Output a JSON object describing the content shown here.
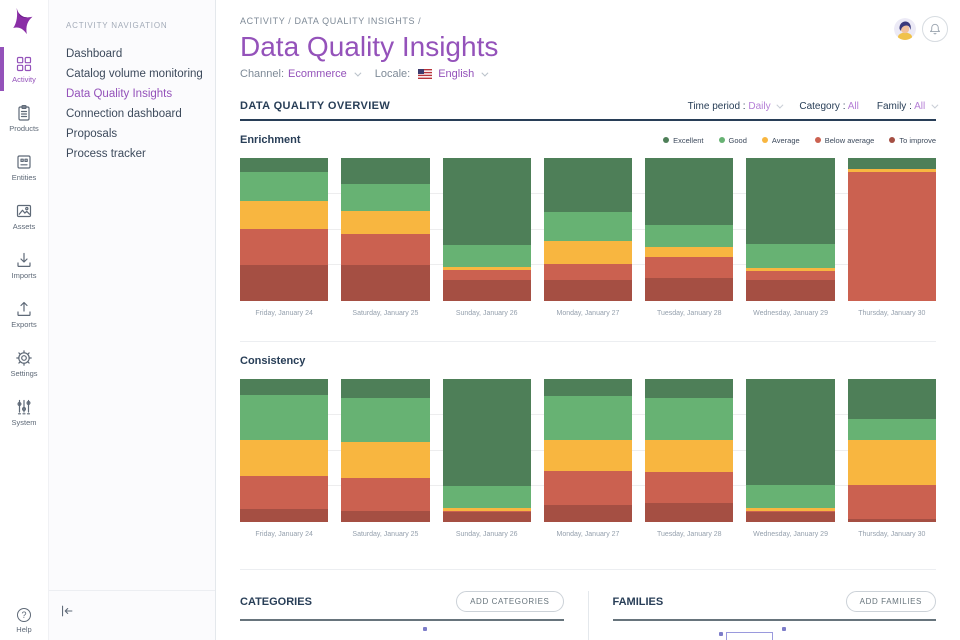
{
  "brand": {
    "logo_color": "#8a2ea6",
    "accent": "#9452ba",
    "navy": "#283e57",
    "gray": "#67747c"
  },
  "rail": {
    "items": [
      {
        "label": "Activity",
        "icon": "grid-icon",
        "active": true
      },
      {
        "label": "Products",
        "icon": "clipboard-icon",
        "active": false
      },
      {
        "label": "Entities",
        "icon": "card-icon",
        "active": false
      },
      {
        "label": "Assets",
        "icon": "image-icon",
        "active": false
      },
      {
        "label": "Imports",
        "icon": "import-icon",
        "active": false
      },
      {
        "label": "Exports",
        "icon": "export-icon",
        "active": false
      },
      {
        "label": "Settings",
        "icon": "gear-icon",
        "active": false
      },
      {
        "label": "System",
        "icon": "sliders-icon",
        "active": false
      }
    ],
    "help_label": "Help"
  },
  "nav": {
    "header": "ACTIVITY NAVIGATION",
    "items": [
      {
        "label": "Dashboard",
        "active": false
      },
      {
        "label": "Catalog volume monitoring",
        "active": false
      },
      {
        "label": "Data Quality Insights",
        "active": true
      },
      {
        "label": "Connection dashboard",
        "active": false
      },
      {
        "label": "Proposals",
        "active": false
      },
      {
        "label": "Process tracker",
        "active": false
      }
    ]
  },
  "header": {
    "breadcrumb": "ACTIVITY / DATA QUALITY INSIGHTS /",
    "title": "Data Quality Insights",
    "channel_label": "Channel:",
    "channel_value": "Ecommerce",
    "locale_label": "Locale:",
    "locale_value": "English"
  },
  "overview": {
    "title": "DATA QUALITY OVERVIEW",
    "filters": [
      {
        "label": "Time period :",
        "value": "Daily",
        "chevron": true
      },
      {
        "label": "Category :",
        "value": "All",
        "chevron": false
      },
      {
        "label": "Family :",
        "value": "All",
        "chevron": true
      }
    ]
  },
  "quality_colors": {
    "excellent": "#4e7f58",
    "good": "#67b273",
    "average": "#f8b640",
    "below_average": "#cb6150",
    "to_improve": "#a54f43"
  },
  "legend": [
    {
      "key": "excellent",
      "label": "Excellent"
    },
    {
      "key": "good",
      "label": "Good"
    },
    {
      "key": "average",
      "label": "Average"
    },
    {
      "key": "below_average",
      "label": "Below average"
    },
    {
      "key": "to_improve",
      "label": "To improve"
    }
  ],
  "chart_data": [
    {
      "type": "bar",
      "stacked": true,
      "unit": "percent",
      "title": "Enrichment",
      "ylim": [
        0,
        100
      ],
      "grid": true,
      "legend_position": "top-right",
      "categories": [
        "Friday, January 24",
        "Saturday, January 25",
        "Sunday, January 26",
        "Monday, January 27",
        "Tuesday, January 28",
        "Wednesday, January 29",
        "Thursday, January 30"
      ],
      "series": [
        {
          "key": "excellent",
          "name": "Excellent",
          "values": [
            10,
            18,
            61,
            38,
            47,
            60,
            8
          ]
        },
        {
          "key": "good",
          "name": "Good",
          "values": [
            20,
            19,
            15,
            20,
            15,
            17,
            0
          ]
        },
        {
          "key": "average",
          "name": "Average",
          "values": [
            20,
            16,
            2,
            16,
            7,
            2,
            2
          ]
        },
        {
          "key": "below_average",
          "name": "Below average",
          "values": [
            25,
            22,
            7,
            11,
            15,
            6,
            90
          ]
        },
        {
          "key": "to_improve",
          "name": "To improve",
          "values": [
            25,
            25,
            15,
            15,
            16,
            15,
            0
          ]
        }
      ]
    },
    {
      "type": "bar",
      "stacked": true,
      "unit": "percent",
      "title": "Consistency",
      "ylim": [
        0,
        100
      ],
      "grid": true,
      "legend_position": "none",
      "categories": [
        "Friday, January 24",
        "Saturday, January 25",
        "Sunday, January 26",
        "Monday, January 27",
        "Tuesday, January 28",
        "Wednesday, January 29",
        "Thursday, January 30"
      ],
      "series": [
        {
          "key": "excellent",
          "name": "Excellent",
          "values": [
            11,
            13,
            75,
            12,
            13,
            74,
            28
          ]
        },
        {
          "key": "good",
          "name": "Good",
          "values": [
            32,
            31,
            15,
            31,
            30,
            16,
            15
          ]
        },
        {
          "key": "average",
          "name": "Average",
          "values": [
            25,
            25,
            2,
            21,
            22,
            2,
            31
          ]
        },
        {
          "key": "below_average",
          "name": "Below average",
          "values": [
            23,
            23,
            1,
            24,
            22,
            1,
            24
          ]
        },
        {
          "key": "to_improve",
          "name": "To improve",
          "values": [
            9,
            8,
            7,
            12,
            13,
            7,
            2
          ]
        }
      ]
    }
  ],
  "bottom": {
    "categories_title": "CATEGORIES",
    "add_categories_label": "ADD CATEGORIES",
    "families_title": "FAMILIES",
    "add_families_label": "ADD FAMILIES"
  }
}
